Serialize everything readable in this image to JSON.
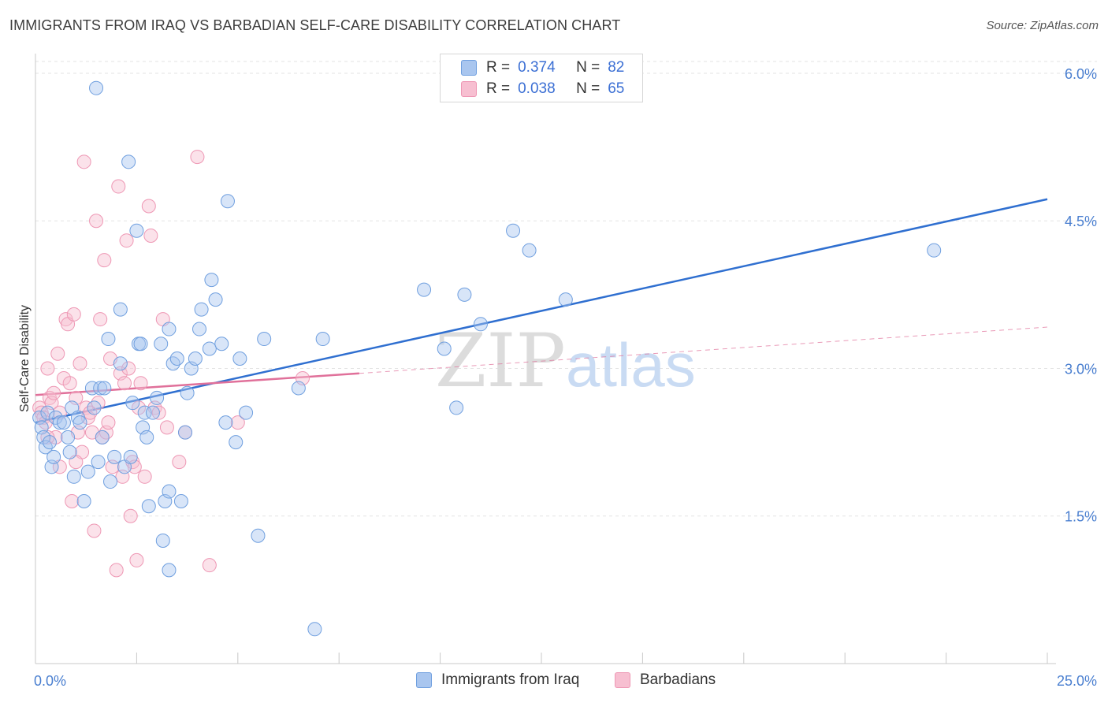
{
  "title": "IMMIGRANTS FROM IRAQ VS BARBADIAN SELF-CARE DISABILITY CORRELATION CHART",
  "source": "Source: ZipAtlas.com",
  "watermark": {
    "zip": "ZIP",
    "atlas": "atlas"
  },
  "legend": {
    "r_label": "R =",
    "n_label": "N =",
    "rows": [
      {
        "r": "0.374",
        "n": "82"
      },
      {
        "r": "0.038",
        "n": "65"
      }
    ]
  },
  "colors": {
    "blue_fill": "#a9c6ef",
    "blue_stroke": "#6f9fdf",
    "blue_line": "#2f6fd0",
    "pink_fill": "#f7bfd1",
    "pink_stroke": "#ee97b4",
    "pink_line": "#e0709a",
    "grid": "#e3e3e3",
    "tick_text": "#4a7fd0"
  },
  "chart_data": {
    "type": "scatter",
    "title": "IMMIGRANTS FROM IRAQ VS BARBADIAN SELF-CARE DISABILITY CORRELATION CHART",
    "xlabel": "",
    "ylabel": "Self-Care Disability",
    "xlim": [
      0,
      25
    ],
    "ylim": [
      0,
      6.2
    ],
    "x_tick_labels": [
      "0.0%",
      "25.0%"
    ],
    "y_ticks": [
      1.5,
      3.0,
      4.5,
      6.0
    ],
    "y_tick_labels": [
      "1.5%",
      "3.0%",
      "4.5%",
      "6.0%"
    ],
    "grid": true,
    "legend_position": "bottom",
    "series": [
      {
        "name": "Immigrants from Iraq",
        "points": [
          [
            0.1,
            2.5
          ],
          [
            0.15,
            2.4
          ],
          [
            0.2,
            2.3
          ],
          [
            0.25,
            2.2
          ],
          [
            0.3,
            2.55
          ],
          [
            0.35,
            2.25
          ],
          [
            0.4,
            2.0
          ],
          [
            0.45,
            2.1
          ],
          [
            0.5,
            2.5
          ],
          [
            0.6,
            2.45
          ],
          [
            0.7,
            2.45
          ],
          [
            0.8,
            2.3
          ],
          [
            0.85,
            2.15
          ],
          [
            0.9,
            2.6
          ],
          [
            0.95,
            1.9
          ],
          [
            1.05,
            2.5
          ],
          [
            1.1,
            2.45
          ],
          [
            1.2,
            1.65
          ],
          [
            1.3,
            1.95
          ],
          [
            1.4,
            2.8
          ],
          [
            1.45,
            2.6
          ],
          [
            1.5,
            5.85
          ],
          [
            1.55,
            2.05
          ],
          [
            1.6,
            2.8
          ],
          [
            1.65,
            2.3
          ],
          [
            1.7,
            2.8
          ],
          [
            1.8,
            3.3
          ],
          [
            1.85,
            1.85
          ],
          [
            1.95,
            2.1
          ],
          [
            2.1,
            3.05
          ],
          [
            2.1,
            3.6
          ],
          [
            2.2,
            2.0
          ],
          [
            2.3,
            5.1
          ],
          [
            2.35,
            2.1
          ],
          [
            2.4,
            2.65
          ],
          [
            2.5,
            4.4
          ],
          [
            2.55,
            3.25
          ],
          [
            2.6,
            3.25
          ],
          [
            2.65,
            2.4
          ],
          [
            2.7,
            2.55
          ],
          [
            2.75,
            2.3
          ],
          [
            2.8,
            1.6
          ],
          [
            2.9,
            2.55
          ],
          [
            3.0,
            2.7
          ],
          [
            3.1,
            3.25
          ],
          [
            3.15,
            1.25
          ],
          [
            3.2,
            1.65
          ],
          [
            3.3,
            3.4
          ],
          [
            3.4,
            3.05
          ],
          [
            3.5,
            3.1
          ],
          [
            3.6,
            1.65
          ],
          [
            3.7,
            2.35
          ],
          [
            3.75,
            2.75
          ],
          [
            3.85,
            3.0
          ],
          [
            3.95,
            3.1
          ],
          [
            4.1,
            3.6
          ],
          [
            4.05,
            3.4
          ],
          [
            4.3,
            3.2
          ],
          [
            4.35,
            3.9
          ],
          [
            4.45,
            3.7
          ],
          [
            4.6,
            3.25
          ],
          [
            4.7,
            2.45
          ],
          [
            4.75,
            4.7
          ],
          [
            4.95,
            2.25
          ],
          [
            5.05,
            3.1
          ],
          [
            5.2,
            2.55
          ],
          [
            5.5,
            1.3
          ],
          [
            5.65,
            3.3
          ],
          [
            6.5,
            2.8
          ],
          [
            6.9,
            0.35
          ],
          [
            7.1,
            3.3
          ],
          [
            3.3,
            0.95
          ],
          [
            3.3,
            1.75
          ],
          [
            9.6,
            3.8
          ],
          [
            10.1,
            3.2
          ],
          [
            10.4,
            2.6
          ],
          [
            10.6,
            3.75
          ],
          [
            11.0,
            3.45
          ],
          [
            11.8,
            4.4
          ],
          [
            12.2,
            4.2
          ],
          [
            13.1,
            3.7
          ],
          [
            22.2,
            4.2
          ]
        ],
        "trendline": {
          "x": [
            0,
            25
          ],
          "y": [
            2.45,
            4.72
          ]
        }
      },
      {
        "name": "Barbadians",
        "points": [
          [
            0.1,
            2.6
          ],
          [
            0.15,
            2.55
          ],
          [
            0.2,
            2.5
          ],
          [
            0.25,
            2.45
          ],
          [
            0.3,
            3.0
          ],
          [
            0.35,
            2.7
          ],
          [
            0.4,
            2.65
          ],
          [
            0.45,
            2.75
          ],
          [
            0.5,
            2.3
          ],
          [
            0.55,
            3.15
          ],
          [
            0.6,
            2.55
          ],
          [
            0.7,
            2.9
          ],
          [
            0.75,
            3.5
          ],
          [
            0.8,
            3.45
          ],
          [
            0.85,
            2.85
          ],
          [
            0.9,
            1.65
          ],
          [
            0.95,
            3.55
          ],
          [
            1.0,
            2.7
          ],
          [
            1.05,
            2.35
          ],
          [
            1.1,
            3.05
          ],
          [
            1.15,
            2.15
          ],
          [
            1.2,
            5.1
          ],
          [
            1.25,
            2.6
          ],
          [
            1.3,
            2.5
          ],
          [
            1.35,
            2.55
          ],
          [
            1.4,
            2.35
          ],
          [
            1.45,
            1.35
          ],
          [
            1.5,
            4.5
          ],
          [
            1.55,
            2.65
          ],
          [
            1.6,
            3.5
          ],
          [
            1.65,
            2.3
          ],
          [
            1.7,
            4.1
          ],
          [
            1.75,
            2.35
          ],
          [
            1.8,
            2.45
          ],
          [
            1.85,
            3.1
          ],
          [
            1.9,
            2.0
          ],
          [
            2.0,
            0.95
          ],
          [
            2.05,
            4.85
          ],
          [
            2.1,
            2.95
          ],
          [
            2.15,
            1.9
          ],
          [
            2.2,
            2.85
          ],
          [
            2.25,
            4.3
          ],
          [
            2.3,
            3.0
          ],
          [
            2.35,
            1.5
          ],
          [
            2.4,
            2.05
          ],
          [
            2.45,
            2.0
          ],
          [
            2.5,
            1.05
          ],
          [
            2.55,
            2.6
          ],
          [
            2.6,
            2.85
          ],
          [
            2.7,
            1.9
          ],
          [
            2.8,
            4.65
          ],
          [
            2.85,
            4.35
          ],
          [
            2.95,
            2.6
          ],
          [
            3.05,
            2.55
          ],
          [
            3.15,
            3.5
          ],
          [
            3.25,
            2.4
          ],
          [
            3.55,
            2.05
          ],
          [
            3.7,
            2.35
          ],
          [
            4.0,
            5.15
          ],
          [
            4.3,
            1.0
          ],
          [
            5.0,
            2.45
          ],
          [
            6.6,
            2.9
          ],
          [
            0.6,
            2.0
          ],
          [
            1.0,
            2.05
          ],
          [
            0.3,
            2.3
          ]
        ],
        "trendline": {
          "x": [
            0,
            8
          ],
          "y": [
            2.73,
            2.95
          ]
        },
        "trendline_extension": {
          "x": [
            8,
            25
          ],
          "y": [
            2.95,
            3.42
          ]
        }
      }
    ]
  }
}
